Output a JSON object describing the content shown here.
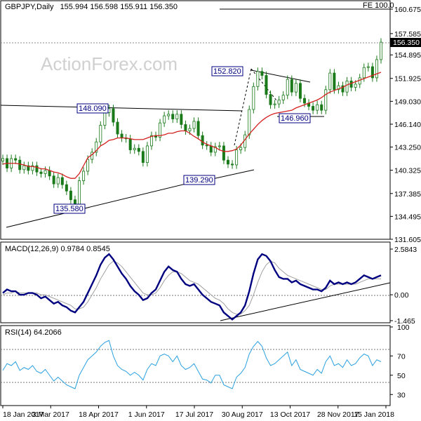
{
  "colors": {
    "candle": "#1a7a1a",
    "sma": "#d42020",
    "macd": "#000080",
    "signal": "#a0a0a0",
    "rsi": "#2aa0e0",
    "trend": "#000000",
    "label_box": "#000080"
  },
  "header": {
    "title": "GBPJPY,Daily",
    "ohlc": "155.994 156.598 155.911 156.350",
    "fe_label": "FE 100.0",
    "last_price": "156.350"
  },
  "watermark": "ActionForex.com",
  "chart_data": [
    {
      "type": "line",
      "title": "GBPJPY,Daily",
      "subtitle": "155.994 156.598 155.911 156.350",
      "price_labels": [
        "160.675",
        "157.585",
        "154.895",
        "151.925",
        "149.030",
        "146.140",
        "143.250",
        "140.325",
        "137.385",
        "134.495",
        "131.605"
      ],
      "ylim": [
        131.605,
        160.675
      ],
      "x_tick_labels": [
        "18 Jan 2017",
        "3 Mar 2017",
        "18 Apr 2017",
        "1 Jun 2017",
        "17 Jul 2017",
        "30 Aug 2017",
        "13 Oct 2017",
        "28 Nov 2017",
        "15 Jan 2018"
      ],
      "annotations": [
        "135.580",
        "148.090",
        "139.290",
        "152.820",
        "146.960",
        "FE 100.0",
        "156.350"
      ],
      "series": [
        {
          "name": "GBPJPY",
          "values": [
            141.8,
            140.6,
            141.8,
            141.6,
            140.4,
            140.9,
            140.3,
            140.9,
            140.1,
            139.9,
            140.3,
            139.6,
            138.6,
            139.4,
            138.5,
            137.7,
            136.6,
            135.9,
            139.0,
            140.2,
            141.7,
            142.6,
            143.9,
            146.0,
            147.6,
            148.1,
            146.4,
            144.9,
            144.4,
            144.3,
            142.9,
            143.1,
            142.7,
            141.3,
            143.4,
            144.7,
            144.5,
            146.3,
            147.2,
            147.4,
            146.8,
            147.4,
            146.1,
            145.3,
            145.6,
            146.5,
            144.7,
            143.5,
            143.4,
            142.6,
            143.3,
            143.4,
            141.6,
            141.1,
            141.0,
            142.9,
            143.2,
            144.8,
            148.0,
            150.9,
            152.8,
            152.3,
            149.9,
            148.6,
            148.7,
            149.2,
            149.8,
            151.8,
            150.2,
            151.3,
            149.4,
            148.8,
            148.4,
            147.9,
            148.6,
            147.9,
            150.5,
            152.6,
            150.5,
            151.0,
            150.2,
            151.6,
            150.8,
            151.2,
            152.0,
            153.3,
            153.4,
            152.0,
            154.3,
            156.5
          ]
        },
        {
          "name": "SMA",
          "values": [
            141.1,
            141.2,
            141.2,
            141.2,
            141.1,
            141.0,
            140.8,
            140.8,
            140.7,
            140.5,
            140.5,
            140.3,
            140.1,
            140.0,
            139.8,
            139.5,
            139.3,
            139.3,
            139.9,
            140.9,
            141.9,
            142.3,
            142.8,
            143.4,
            143.7,
            144.1,
            144.2,
            144.4,
            144.4,
            144.4,
            144.3,
            144.2,
            144.2,
            144.2,
            144.4,
            144.6,
            144.7,
            144.7,
            144.8,
            145.0,
            145.0,
            145.2,
            145.3,
            145.3,
            145.0,
            144.6,
            144.3,
            143.9,
            143.6,
            143.4,
            143.2,
            142.9,
            142.7,
            142.7,
            142.8,
            143.0,
            143.5,
            144.2,
            144.9,
            145.5,
            146.1,
            146.6,
            147.0,
            147.3,
            147.5,
            147.6,
            147.7,
            147.8,
            147.9,
            148.2,
            148.4,
            148.6,
            148.8,
            149.0,
            149.2,
            149.5,
            149.9,
            150.2,
            150.4,
            150.6,
            150.8,
            151.1,
            151.3,
            151.5,
            151.7,
            151.9,
            152.1,
            152.3,
            152.5,
            152.7
          ]
        }
      ]
    },
    {
      "type": "line",
      "title": "MACD(12,26,9) 0.9784 0.8545",
      "ylim": [
        -1.465,
        2.5843
      ],
      "y_tick_labels": [
        "2.5843",
        "0.00",
        "-1.465"
      ],
      "series": [
        {
          "name": "MACD",
          "values": [
            0.1,
            0.3,
            0.2,
            0.2,
            0.0,
            0.0,
            0.1,
            0.1,
            0.0,
            -0.2,
            -0.1,
            -0.3,
            -0.5,
            -0.4,
            -0.6,
            -0.7,
            -0.9,
            -1.0,
            -0.7,
            -0.4,
            0.1,
            0.6,
            1.1,
            1.7,
            2.1,
            2.3,
            2.0,
            1.6,
            1.2,
            0.9,
            0.5,
            0.2,
            0.0,
            -0.3,
            -0.2,
            0.1,
            0.3,
            0.8,
            1.3,
            1.6,
            1.4,
            1.3,
            0.9,
            0.6,
            0.5,
            0.6,
            0.3,
            0.0,
            -0.2,
            -0.4,
            -0.5,
            -0.6,
            -1.0,
            -1.2,
            -1.4,
            -1.2,
            -1.0,
            -0.6,
            0.2,
            1.2,
            2.0,
            2.3,
            2.2,
            1.9,
            1.4,
            1.0,
            0.9,
            0.9,
            0.7,
            0.8,
            0.6,
            0.5,
            0.4,
            0.3,
            0.3,
            0.2,
            0.4,
            0.8,
            0.6,
            0.7,
            0.6,
            0.7,
            0.6,
            0.7,
            0.9,
            1.1,
            1.0,
            0.9,
            1.0,
            1.1
          ]
        },
        {
          "name": "Signal",
          "values": [
            0.0,
            0.1,
            0.1,
            0.2,
            0.1,
            0.1,
            0.1,
            0.1,
            0.1,
            0.0,
            0.0,
            -0.1,
            -0.2,
            -0.3,
            -0.4,
            -0.5,
            -0.6,
            -0.8,
            -0.8,
            -0.7,
            -0.4,
            0.0,
            0.4,
            0.9,
            1.3,
            1.7,
            1.9,
            1.8,
            1.6,
            1.3,
            1.0,
            0.7,
            0.4,
            0.1,
            0.0,
            0.0,
            0.1,
            0.4,
            0.8,
            1.1,
            1.3,
            1.3,
            1.2,
            1.0,
            0.8,
            0.7,
            0.6,
            0.4,
            0.2,
            0.0,
            -0.2,
            -0.3,
            -0.5,
            -0.8,
            -1.0,
            -1.1,
            -1.1,
            -0.9,
            -0.6,
            0.0,
            0.7,
            1.3,
            1.7,
            1.9,
            1.8,
            1.5,
            1.3,
            1.1,
            1.0,
            0.9,
            0.8,
            0.7,
            0.6,
            0.5,
            0.4,
            0.3,
            0.3,
            0.5,
            0.6,
            0.6,
            0.6,
            0.6,
            0.6,
            0.6,
            0.7,
            0.8,
            0.9,
            0.9,
            0.9,
            0.9
          ]
        }
      ]
    },
    {
      "type": "line",
      "title": "RSI(14) 64.2066",
      "ylim": [
        20,
        100
      ],
      "y_tick_labels": [
        "100",
        "70",
        "50",
        "30"
      ],
      "series": [
        {
          "name": "RSI",
          "values": [
            55,
            62,
            60,
            64,
            55,
            58,
            56,
            60,
            54,
            52,
            56,
            50,
            44,
            48,
            44,
            40,
            38,
            36,
            50,
            58,
            66,
            70,
            74,
            80,
            84,
            86,
            70,
            60,
            56,
            54,
            50,
            53,
            50,
            45,
            56,
            62,
            60,
            70,
            72,
            70,
            64,
            70,
            60,
            56,
            58,
            62,
            54,
            46,
            45,
            42,
            50,
            50,
            40,
            38,
            36,
            48,
            52,
            58,
            72,
            80,
            85,
            80,
            68,
            60,
            62,
            66,
            70,
            74,
            60,
            66,
            56,
            54,
            52,
            50,
            56,
            52,
            64,
            70,
            60,
            62,
            58,
            66,
            60,
            62,
            68,
            72,
            70,
            60,
            66,
            64
          ]
        }
      ]
    }
  ]
}
